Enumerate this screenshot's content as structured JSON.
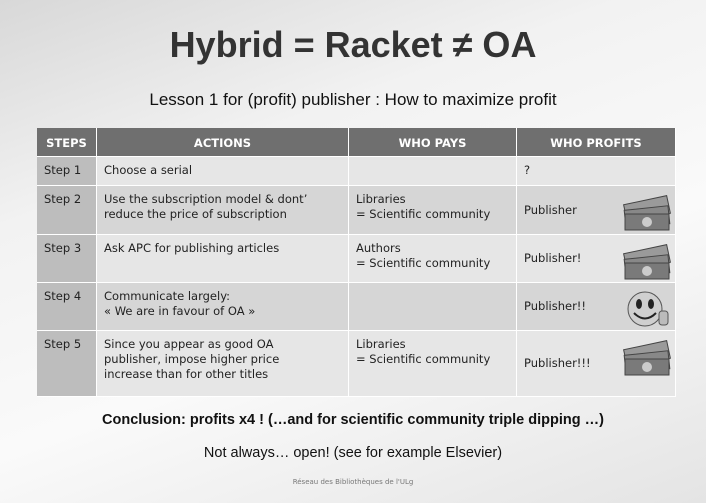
{
  "header": {
    "title": "Hybrid = Racket ≠ OA",
    "subtitle": "Lesson 1 for (profit) publisher : How to maximize profit"
  },
  "table": {
    "columns": [
      "STEPS",
      "ACTIONS",
      "WHO PAYS",
      "WHO PROFITS"
    ],
    "rows": [
      [
        "Step 1",
        "Choose a serial",
        "",
        "?"
      ],
      [
        "Step 2",
        "Use the subscription model & dont’\nreduce the price of subscription",
        "Libraries\n = Scientific community",
        "Publisher"
      ],
      [
        "Step 3",
        "Ask APC for publishing articles",
        "Authors\n= Scientific community",
        "Publisher!"
      ],
      [
        "Step 4",
        "Communicate largely:\n« We are in favour of OA »",
        "",
        "Publisher!!"
      ],
      [
        "Step 5",
        "Since you appear as good OA\npublisher, impose higher price\nincrease than for other titles",
        "Libraries\n= Scientific community",
        "Publisher!!!"
      ]
    ]
  },
  "conclusion": "Conclusion: profits x4 ! (…and for scientific community triple dipping …)",
  "note": "Not always… open! (see for example Elsevier)",
  "footer": "Réseau des Bibliothèques de l'ULg"
}
